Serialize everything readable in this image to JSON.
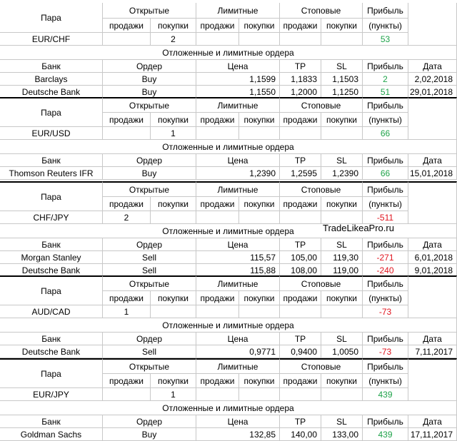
{
  "header_labels": {
    "pair": "Пара",
    "open": "Открытые",
    "limit": "Лимитные",
    "stop": "Стоповые",
    "profit": "Прибыль",
    "sell": "продажи",
    "buy": "покупки",
    "points": "(пункты)",
    "deferred": "Отложенные и лимитные ордера",
    "bank": "Банк",
    "order": "Ордер",
    "price": "Цена",
    "tp": "TP",
    "sl": "SL",
    "date": "Дата"
  },
  "watermark": "TradeLikeaPro.ru",
  "colors": {
    "positive": "#1fa34a",
    "negative": "#e0141e",
    "grid": "#c8c8c8"
  },
  "blocks": [
    {
      "pair": "EUR/CHF",
      "open_sell": "",
      "open_buy": "2",
      "limit_sell": "",
      "limit_buy": "",
      "stop_sell": "",
      "stop_buy": "",
      "profit": "53",
      "profit_sign": "positive",
      "orders": [
        {
          "bank": "Barclays",
          "order": "Buy",
          "price": "1,1599",
          "tp": "1,1833",
          "sl": "1,1503",
          "profit": "2",
          "profit_sign": "positive",
          "date": "2,02,2018"
        },
        {
          "bank": "Deutsche Bank",
          "order": "Buy",
          "price": "1,1550",
          "tp": "1,2000",
          "sl": "1,1250",
          "profit": "51",
          "profit_sign": "positive",
          "date": "29,01,2018"
        }
      ]
    },
    {
      "pair": "EUR/USD",
      "open_sell": "",
      "open_buy": "1",
      "limit_sell": "",
      "limit_buy": "",
      "stop_sell": "",
      "stop_buy": "",
      "profit": "66",
      "profit_sign": "positive",
      "orders": [
        {
          "bank": "Thomson Reuters IFR",
          "order": "Buy",
          "price": "1,2390",
          "tp": "1,2595",
          "sl": "1,2390",
          "profit": "66",
          "profit_sign": "positive",
          "date": "15,01,2018"
        }
      ]
    },
    {
      "pair": "CHF/JPY",
      "open_sell": "2",
      "open_buy": "",
      "limit_sell": "",
      "limit_buy": "",
      "stop_sell": "",
      "stop_buy": "",
      "profit": "-511",
      "profit_sign": "negative",
      "orders": [
        {
          "bank": "Morgan Stanley",
          "order": "Sell",
          "price": "115,57",
          "tp": "105,00",
          "sl": "119,30",
          "profit": "-271",
          "profit_sign": "negative",
          "date": "6,01,2018"
        },
        {
          "bank": "Deutsche Bank",
          "order": "Sell",
          "price": "115,88",
          "tp": "108,00",
          "sl": "119,00",
          "profit": "-240",
          "profit_sign": "negative",
          "date": "9,01,2018"
        }
      ]
    },
    {
      "pair": "AUD/CAD",
      "open_sell": "1",
      "open_buy": "",
      "limit_sell": "",
      "limit_buy": "",
      "stop_sell": "",
      "stop_buy": "",
      "profit": "-73",
      "profit_sign": "negative",
      "orders": [
        {
          "bank": "Deutsche Bank",
          "order": "Sell",
          "price": "0,9771",
          "tp": "0,9400",
          "sl": "1,0050",
          "profit": "-73",
          "profit_sign": "negative",
          "date": "7,11,2017"
        }
      ]
    },
    {
      "pair": "EUR/JPY",
      "open_sell": "",
      "open_buy": "1",
      "limit_sell": "",
      "limit_buy": "",
      "stop_sell": "",
      "stop_buy": "",
      "profit": "439",
      "profit_sign": "positive",
      "orders": [
        {
          "bank": "Goldman Sachs",
          "order": "Buy",
          "price": "132,85",
          "tp": "140,00",
          "sl": "133,00",
          "profit": "439",
          "profit_sign": "positive",
          "date": "17,11,2017"
        }
      ]
    }
  ]
}
